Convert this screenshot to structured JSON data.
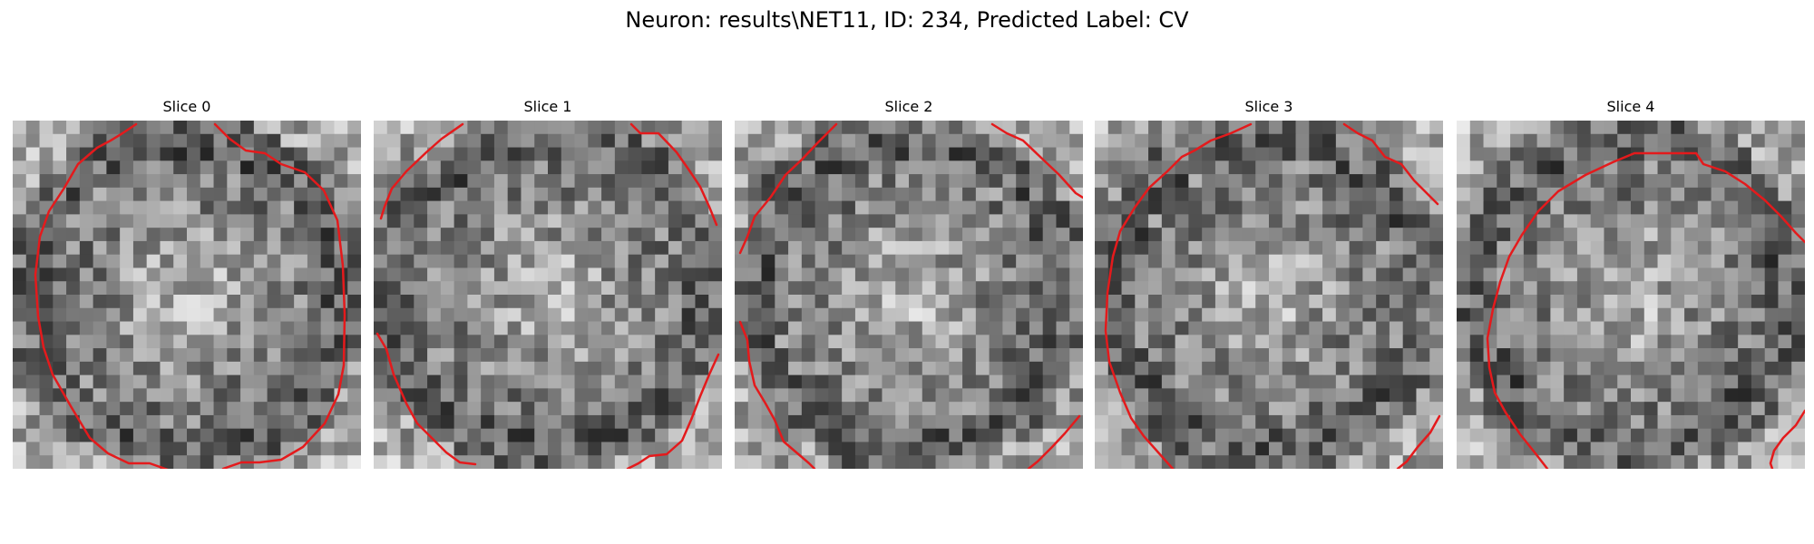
{
  "figure": {
    "title": "Neuron: results\\NET11, ID: 234, Predicted Label: CV"
  },
  "colors": {
    "contour": "#e41a1c",
    "background": "#ffffff"
  },
  "slices": [
    {
      "label": "Slice 0"
    },
    {
      "label": "Slice 1"
    },
    {
      "label": "Slice 2"
    },
    {
      "label": "Slice 3"
    },
    {
      "label": "Slice 4"
    }
  ]
}
